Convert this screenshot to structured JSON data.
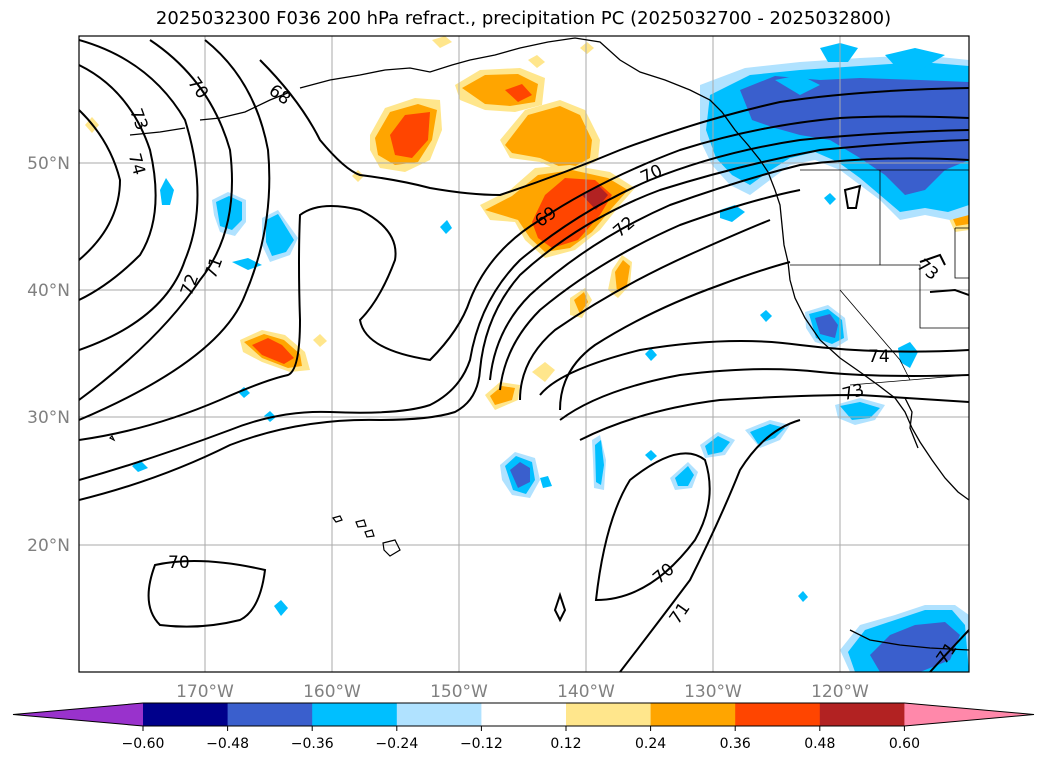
{
  "title": "2025032300 F036 200 hPa refract., precipitation PC (2025032700 - 2025032800)",
  "lat_labels": [
    "50°N",
    "40°N",
    "30°N",
    "20°N"
  ],
  "lon_labels": [
    "170°W",
    "160°W",
    "150°W",
    "140°W",
    "130°W",
    "120°W"
  ],
  "contour_labels": [
    "70",
    "73",
    "74",
    "68",
    "72",
    "71",
    "69",
    "70",
    "72",
    "73",
    "74",
    "73",
    "70",
    "70",
    "71",
    "71"
  ],
  "colorbar": {
    "ticks": [
      "−0.60",
      "−0.48",
      "−0.36",
      "−0.24",
      "−0.12",
      "0.12",
      "0.24",
      "0.36",
      "0.48",
      "0.60"
    ],
    "colors": [
      "#9932CC",
      "#00008B",
      "#3A5FCD",
      "#00BFFF",
      "#B0E2FF",
      "#FFFFFF",
      "#FFE68C",
      "#FFA500",
      "#FF4500",
      "#B22222",
      "#FF88AA"
    ]
  },
  "colors": {
    "low": "#9932CC",
    "high": "#FF88AA",
    "contour": "#000000",
    "grid": "#aaaaaa"
  }
}
